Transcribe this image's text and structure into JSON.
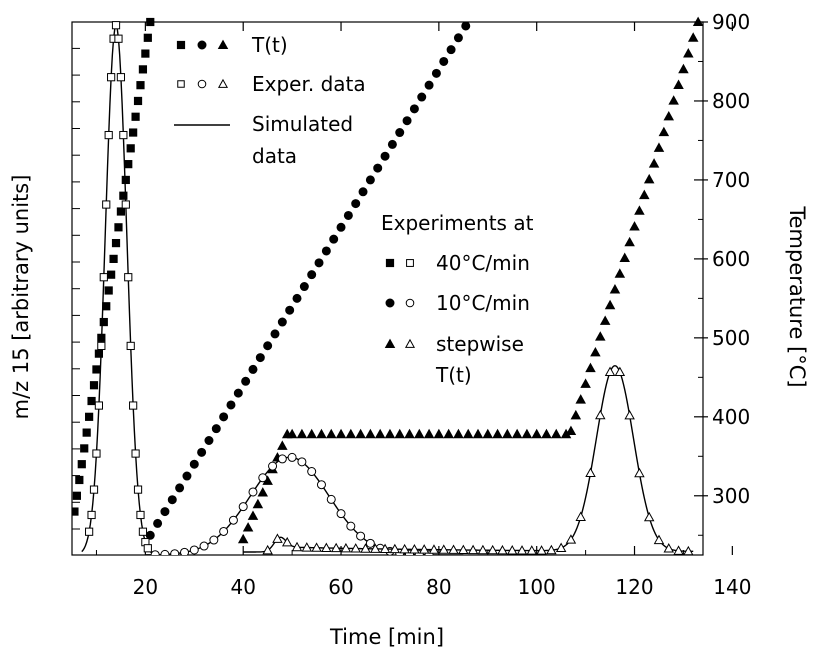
{
  "chart_data": {
    "type": "scatter",
    "xlabel": "Time  [min]",
    "ylabel_left": "m/z 15  [arbitrary units]",
    "ylabel_right": "Temperature  [°C]",
    "xlim": [
      5,
      134
    ],
    "ylim_right": [
      225,
      900
    ],
    "x_ticks": [
      20,
      40,
      60,
      80,
      100,
      120,
      140
    ],
    "y_right_ticks": [
      300,
      400,
      500,
      600,
      700,
      800,
      900
    ],
    "legend": {
      "top": [
        {
          "markers": "filled",
          "label": "T(t)"
        },
        {
          "markers": "open",
          "label": "Exper. data"
        },
        {
          "markers": "line",
          "label": "Simulated",
          "label2": "data"
        }
      ],
      "experiments_title": "Experiments at",
      "experiments": [
        {
          "shape": "square",
          "label": "40°C/min"
        },
        {
          "shape": "circle",
          "label": "10°C/min"
        },
        {
          "shape": "triangle",
          "label": "stepwise",
          "label2": "T(t)"
        }
      ]
    },
    "series": [
      {
        "name": "40°C/min",
        "shape": "square",
        "kind": "temperature",
        "x_start": 5.5,
        "temperature_start": 280,
        "rate_per_min": 40,
        "x_end": 21,
        "dx": 0.5
      },
      {
        "name": "10°C/min",
        "shape": "circle",
        "kind": "temperature",
        "x_start": 21,
        "temperature_start": 250,
        "rate_per_min": 10,
        "x_end": 86.5,
        "dx": 1.5
      },
      {
        "name": "stepwise T(t)",
        "shape": "triangle",
        "kind": "temperature_segments",
        "segments": [
          {
            "x0": 40,
            "t0": 245,
            "x1": 49,
            "t1": 378,
            "dx": 1.0
          },
          {
            "x0": 50,
            "t0": 378,
            "x1": 106,
            "t1": 378,
            "dx": 2.0
          },
          {
            "x0": 107,
            "t0": 382,
            "x1": 133,
            "t1": 900,
            "dx": 1.0
          }
        ]
      },
      {
        "name": "40°C/min",
        "shape": "square",
        "kind": "signal",
        "peaks": [
          {
            "center": 14,
            "height": 883,
            "sigma": 2.2
          }
        ],
        "x_start": 8.5,
        "x_end": 20.5,
        "dx": 0.5,
        "line_x_start": 7,
        "line_x_end": 22
      },
      {
        "name": "10°C/min",
        "shape": "circle",
        "kind": "signal",
        "peaks": [
          {
            "center": 49.5,
            "height": 163,
            "sigma": 8
          }
        ],
        "x_start": 22,
        "x_end": 79,
        "dx": 2,
        "line_x_start": 20,
        "line_x_end": 85
      },
      {
        "name": "stepwise T(t)",
        "shape": "triangle",
        "kind": "signal",
        "baseline": 5,
        "step_center": 46.5,
        "step_level": 8,
        "peaks": [
          {
            "center": 47.5,
            "height": 18,
            "sigma": 1.2
          },
          {
            "center": 116,
            "height": 309,
            "sigma": 3.8
          }
        ],
        "x_start": 45,
        "x_end": 131,
        "dx": 2,
        "line_x_start": 40,
        "line_x_end": 132
      }
    ]
  }
}
